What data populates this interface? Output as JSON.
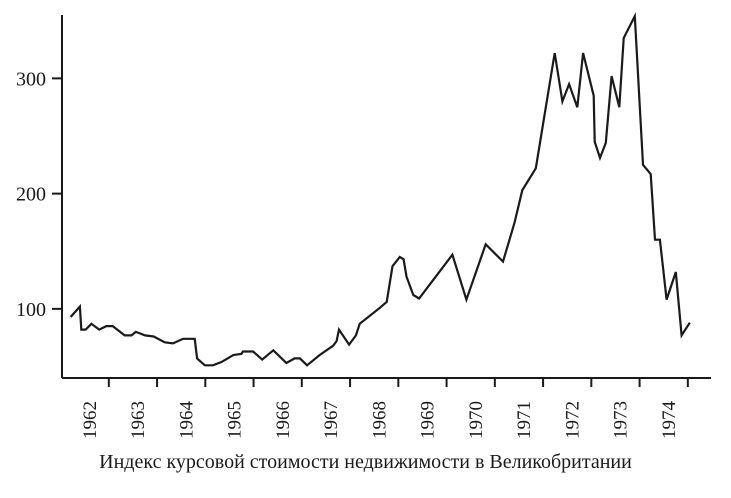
{
  "chart_data": {
    "type": "line",
    "title": "",
    "xlabel": "Индекс курсовой стоимости недвижимости в Великобритании",
    "ylabel": "",
    "xlim": [
      1961.03,
      1974.48
    ],
    "ylim": [
      40,
      355
    ],
    "grid": false,
    "line_color": "#1a1a1a",
    "x_ticks": [
      1962,
      1963,
      1964,
      1965,
      1966,
      1967,
      1968,
      1969,
      1970,
      1971,
      1972,
      1973,
      1974
    ],
    "x_tick_labels": [
      "1962",
      "1963",
      "1964",
      "1965",
      "1966",
      "1967",
      "1968",
      "1969",
      "1970",
      "1971",
      "1972",
      "1973",
      "1974"
    ],
    "y_ticks": [
      100,
      200,
      300
    ],
    "y_tick_labels": [
      "100",
      "200",
      "300"
    ],
    "series": [
      {
        "x": [
          1961.21,
          1961.4,
          1961.43,
          1961.52,
          1961.64,
          1961.8,
          1961.95,
          1962.08,
          1962.33,
          1962.47,
          1962.56,
          1962.63,
          1962.75,
          1962.93,
          1963.16,
          1963.33,
          1963.54,
          1963.78,
          1963.83,
          1963.99,
          1964.16,
          1964.34,
          1964.58,
          1964.75,
          1964.78,
          1964.99,
          1965.18,
          1965.41,
          1965.68,
          1965.85,
          1965.96,
          1966.11,
          1966.37,
          1966.65,
          1966.72,
          1966.77,
          1966.98,
          1967.12,
          1967.2,
          1967.62,
          1967.76,
          1967.88,
          1968.03,
          1968.11,
          1968.17,
          1968.31,
          1968.43,
          1969.12,
          1969.41,
          1969.81,
          1970.17,
          1970.41,
          1970.57,
          1970.85,
          1971.24,
          1971.4,
          1971.54,
          1971.71,
          1971.83,
          1972.05,
          1972.07,
          1972.18,
          1972.3,
          1972.42,
          1972.58,
          1972.67,
          1972.9,
          1973.07,
          1973.23,
          1973.32,
          1973.42,
          1973.56,
          1973.75,
          1973.87,
          1974.04
        ],
        "y": [
          93,
          102,
          82,
          82,
          87,
          82,
          85,
          85,
          77,
          77,
          80,
          79,
          77,
          76,
          71,
          70,
          74,
          74,
          57,
          51,
          51,
          54,
          60,
          61,
          63,
          63,
          56,
          64,
          53,
          57,
          57,
          51,
          60,
          68,
          72,
          82,
          69,
          77,
          87,
          101,
          106,
          137,
          145,
          143,
          128,
          112,
          109,
          147,
          108,
          156,
          141,
          175,
          203,
          222,
          322,
          280,
          295,
          275,
          322,
          285,
          245,
          231,
          244,
          302,
          275,
          335,
          354,
          225,
          217,
          160,
          160,
          108,
          132,
          77,
          88
        ]
      }
    ]
  }
}
